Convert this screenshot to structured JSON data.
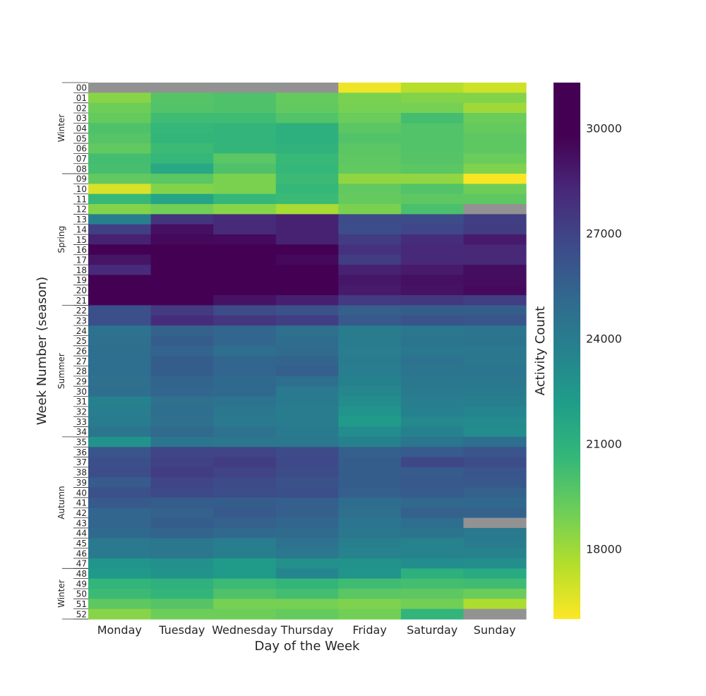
{
  "chart_data": {
    "type": "heatmap",
    "title": "",
    "xlabel": "Day of the Week",
    "ylabel": "Week Number (season)",
    "colorbar_label": "Activity Count",
    "colormap": "viridis_r",
    "vmin": 16000,
    "vmax": 31300,
    "colorbar_ticks": [
      18000,
      21000,
      24000,
      27000,
      30000
    ],
    "missing_color": "#929292",
    "x_categories": [
      "Monday",
      "Tuesday",
      "Wednesday",
      "Thursday",
      "Friday",
      "Saturday",
      "Sunday"
    ],
    "y_categories": [
      "00",
      "01",
      "02",
      "03",
      "04",
      "05",
      "06",
      "07",
      "08",
      "09",
      "10",
      "11",
      "12",
      "13",
      "14",
      "15",
      "16",
      "17",
      "18",
      "19",
      "20",
      "21",
      "22",
      "23",
      "24",
      "25",
      "26",
      "27",
      "28",
      "29",
      "30",
      "31",
      "32",
      "33",
      "34",
      "35",
      "36",
      "37",
      "38",
      "39",
      "40",
      "41",
      "42",
      "43",
      "44",
      "45",
      "46",
      "47",
      "48",
      "49",
      "50",
      "51",
      "52"
    ],
    "seasons": [
      {
        "label": "Winter",
        "start": 0,
        "end": 8
      },
      {
        "label": "Spring",
        "start": 9,
        "end": 21
      },
      {
        "label": "Summer",
        "start": 22,
        "end": 34
      },
      {
        "label": "Autumn",
        "start": 35,
        "end": 47
      },
      {
        "label": "Winter",
        "start": 48,
        "end": 52
      }
    ],
    "values": [
      [
        null,
        null,
        null,
        null,
        16300,
        17500,
        17000
      ],
      [
        18500,
        19700,
        19900,
        19300,
        18800,
        18600,
        18600
      ],
      [
        19100,
        19800,
        19900,
        19400,
        18900,
        18900,
        18000
      ],
      [
        19300,
        20300,
        20300,
        19800,
        19200,
        20200,
        19200
      ],
      [
        19900,
        20600,
        20700,
        21100,
        19600,
        19800,
        19300
      ],
      [
        19700,
        20700,
        20800,
        21100,
        19800,
        19800,
        19500
      ],
      [
        19400,
        20400,
        20700,
        20900,
        19600,
        19800,
        19500
      ],
      [
        20200,
        20600,
        19600,
        20500,
        19500,
        19700,
        19200
      ],
      [
        20100,
        21500,
        19900,
        20600,
        19400,
        19600,
        18700
      ],
      [
        19400,
        19600,
        18800,
        20400,
        18300,
        18300,
        16100
      ],
      [
        16800,
        18600,
        18800,
        20600,
        19400,
        19800,
        19100
      ],
      [
        20500,
        21700,
        20600,
        20400,
        19300,
        19500,
        19500
      ],
      [
        18600,
        19000,
        18500,
        17800,
        18800,
        20000,
        null
      ],
      [
        23800,
        27700,
        28100,
        28500,
        26600,
        26600,
        27200
      ],
      [
        27200,
        29200,
        28100,
        28500,
        26500,
        26800,
        27300
      ],
      [
        28500,
        29500,
        29400,
        28500,
        27300,
        28000,
        28800
      ],
      [
        29800,
        31000,
        30700,
        30300,
        27800,
        28200,
        28200
      ],
      [
        29000,
        30400,
        30500,
        29500,
        27300,
        28200,
        28200
      ],
      [
        28100,
        30900,
        31000,
        30600,
        28500,
        28800,
        29300
      ],
      [
        30300,
        30800,
        30700,
        31000,
        28900,
        29200,
        29300
      ],
      [
        30600,
        31300,
        30400,
        30600,
        28800,
        29100,
        29400
      ],
      [
        30700,
        30800,
        29100,
        28600,
        27400,
        27500,
        27200
      ],
      [
        26400,
        27400,
        26600,
        26300,
        25600,
        25700,
        25700
      ],
      [
        26400,
        28000,
        27600,
        27200,
        25900,
        26200,
        26100
      ],
      [
        24600,
        25500,
        25300,
        24700,
        24000,
        24300,
        24400
      ],
      [
        24700,
        25700,
        25300,
        24900,
        24000,
        24400,
        24500
      ],
      [
        24800,
        25400,
        24800,
        25000,
        23900,
        24300,
        24300
      ],
      [
        24800,
        25700,
        25300,
        25400,
        24000,
        24600,
        24300
      ],
      [
        24800,
        25700,
        25300,
        25600,
        23900,
        24400,
        24400
      ],
      [
        24700,
        25400,
        25100,
        24800,
        23700,
        24300,
        24300
      ],
      [
        24800,
        25300,
        25100,
        24200,
        23400,
        24100,
        24100
      ],
      [
        23700,
        24700,
        24600,
        24100,
        23100,
        23900,
        23800
      ],
      [
        23900,
        24800,
        24300,
        24000,
        22600,
        23700,
        23500
      ],
      [
        24000,
        24700,
        24200,
        24000,
        22300,
        23300,
        23200
      ],
      [
        24400,
        25000,
        24600,
        24100,
        23100,
        23700,
        23100
      ],
      [
        22700,
        24400,
        24300,
        24300,
        23700,
        24400,
        24800
      ],
      [
        26100,
        26900,
        26900,
        26600,
        25600,
        25800,
        26100
      ],
      [
        26400,
        27100,
        27300,
        26700,
        25700,
        26800,
        26500
      ],
      [
        26500,
        27300,
        27000,
        26600,
        25700,
        25800,
        26100
      ],
      [
        25800,
        26900,
        26600,
        26300,
        25700,
        25900,
        26000
      ],
      [
        26300,
        26700,
        26500,
        26400,
        25600,
        25800,
        25500
      ],
      [
        25900,
        25700,
        25700,
        25600,
        24900,
        25200,
        25200
      ],
      [
        25300,
        25500,
        25900,
        25600,
        24700,
        25500,
        25500
      ],
      [
        25300,
        25700,
        25500,
        25300,
        24400,
        24800,
        null
      ],
      [
        25100,
        25400,
        25200,
        25000,
        24300,
        24500,
        24200
      ],
      [
        24200,
        24300,
        23900,
        24600,
        23800,
        23600,
        24000
      ],
      [
        24100,
        24300,
        23800,
        24300,
        23600,
        23600,
        23600
      ],
      [
        22600,
        22900,
        22300,
        22900,
        22800,
        23100,
        23000
      ],
      [
        22400,
        22700,
        22300,
        23500,
        22600,
        21100,
        21400
      ],
      [
        20800,
        21000,
        20400,
        20700,
        20300,
        20200,
        20300
      ],
      [
        20400,
        20700,
        19900,
        20200,
        19600,
        19500,
        19200
      ],
      [
        19500,
        19700,
        18900,
        18900,
        18700,
        19000,
        17700
      ],
      [
        18500,
        19100,
        19100,
        19300,
        19000,
        20800,
        null
      ]
    ]
  }
}
